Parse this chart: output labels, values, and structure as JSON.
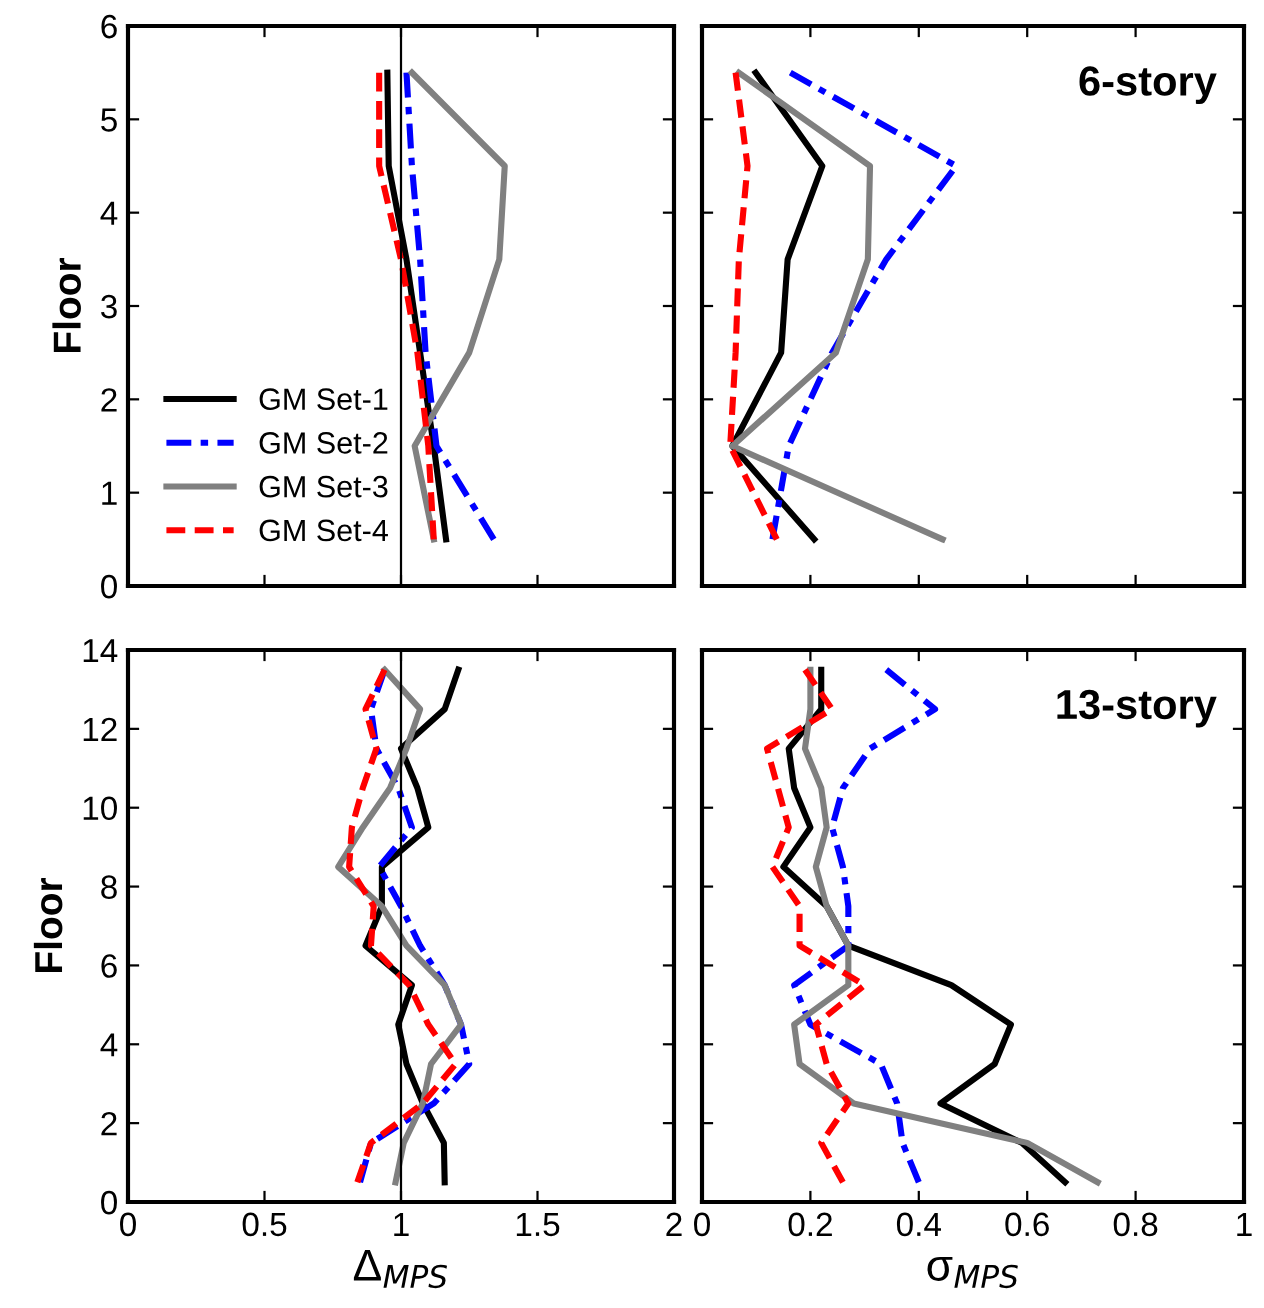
{
  "chart_data": [
    {
      "type": "line",
      "ylabel": "Floor",
      "xlim": [
        0,
        2
      ],
      "xticks": [
        0,
        0.5,
        1,
        1.5,
        2
      ],
      "ylim": [
        0,
        6
      ],
      "yticks": [
        0,
        1,
        2,
        3,
        4,
        5,
        6
      ],
      "tick_labels": "y",
      "legend": "bottom left",
      "ref_lines": [
        {
          "axis": "x",
          "value": 1,
          "color": "#000000"
        }
      ],
      "series": [
        {
          "name": "GM Set-1",
          "color": "#000000",
          "line_style": "solid",
          "x": [
            1.165,
            1.12,
            1.07,
            1.02,
            0.955,
            0.95
          ],
          "values": [
            0.5,
            1.5,
            2.5,
            3.5,
            4.5,
            5.5
          ]
        },
        {
          "name": "GM Set-2",
          "color": "#0000ff",
          "line_style": "dashdot",
          "x": [
            1.34,
            1.13,
            1.09,
            1.07,
            1.04,
            1.02
          ],
          "values": [
            0.5,
            1.5,
            2.5,
            3.5,
            4.5,
            5.5
          ]
        },
        {
          "name": "GM Set-3",
          "color": "#808080",
          "line_style": "solid",
          "x": [
            1.12,
            1.05,
            1.25,
            1.36,
            1.38,
            1.04
          ],
          "values": [
            0.5,
            1.5,
            2.5,
            3.5,
            4.5,
            5.5
          ]
        },
        {
          "name": "GM Set-4",
          "color": "#ff0000",
          "line_style": "dashed",
          "x": [
            1.12,
            1.1,
            1.06,
            1.0,
            0.92,
            0.92
          ],
          "values": [
            0.5,
            1.5,
            2.5,
            3.5,
            4.5,
            5.5
          ]
        }
      ]
    },
    {
      "type": "line",
      "xlim": [
        0,
        1
      ],
      "xticks": [
        0,
        0.2,
        0.4,
        0.6,
        0.8,
        1
      ],
      "ylim": [
        0,
        6
      ],
      "yticks": [
        0,
        1,
        2,
        3,
        4,
        5,
        6
      ],
      "tick_labels": false,
      "annotations": [
        "6-story"
      ],
      "series": [
        {
          "color": "#000000",
          "line_style": "solid",
          "x": [
            0.207,
            0.056,
            0.146,
            0.158,
            0.222,
            0.099
          ],
          "values": [
            0.5,
            1.5,
            2.5,
            3.5,
            4.5,
            5.5
          ]
        },
        {
          "color": "#0000ff",
          "line_style": "dashdot",
          "x": [
            0.13,
            0.16,
            0.24,
            0.34,
            0.469,
            0.163
          ],
          "values": [
            0.5,
            1.5,
            2.5,
            3.5,
            4.5,
            5.5
          ]
        },
        {
          "color": "#808080",
          "line_style": "solid",
          "x": [
            0.444,
            0.056,
            0.247,
            0.306,
            0.31,
            0.068
          ],
          "values": [
            0.5,
            1.5,
            2.5,
            3.5,
            4.5,
            5.5
          ]
        },
        {
          "color": "#ff0000",
          "line_style": "dashed",
          "x": [
            0.138,
            0.052,
            0.062,
            0.068,
            0.084,
            0.062
          ],
          "values": [
            0.5,
            1.5,
            2.5,
            3.5,
            4.5,
            5.5
          ]
        }
      ]
    },
    {
      "type": "line",
      "xlabel": "Δ$_{MPS}$",
      "ylabel": "Floor",
      "xlim": [
        0,
        2
      ],
      "xticks": [
        0,
        0.5,
        1,
        1.5,
        2
      ],
      "ylim": [
        0,
        14
      ],
      "yticks": [
        0,
        2,
        4,
        6,
        8,
        10,
        12,
        14
      ],
      "ref_lines": [
        {
          "axis": "x",
          "value": 1,
          "color": "#000000"
        }
      ],
      "series": [
        {
          "color": "#000000",
          "line_style": "solid",
          "x": [
            1.16,
            1.157,
            1.08,
            1.02,
            0.99,
            1.04,
            0.87,
            0.93,
            0.93,
            1.1,
            1.06,
            1.0,
            1.16,
            1.21
          ],
          "values": [
            0.5,
            1.5,
            2.5,
            3.5,
            4.5,
            5.5,
            6.5,
            7.5,
            8.5,
            9.5,
            10.5,
            11.5,
            12.5,
            13.5
          ]
        },
        {
          "color": "#0000ff",
          "line_style": "dashdot",
          "x": [
            0.85,
            0.89,
            1.12,
            1.25,
            1.22,
            1.16,
            1.07,
            1.0,
            0.92,
            1.04,
            0.99,
            0.91,
            0.89,
            0.94
          ],
          "values": [
            0.5,
            1.5,
            2.5,
            3.5,
            4.5,
            5.5,
            6.5,
            7.5,
            8.5,
            9.5,
            10.5,
            11.5,
            12.5,
            13.5
          ]
        },
        {
          "color": "#808080",
          "line_style": "solid",
          "x": [
            0.98,
            1.01,
            1.08,
            1.11,
            1.22,
            1.16,
            1.02,
            0.93,
            0.77,
            0.86,
            0.96,
            1.02,
            1.07,
            0.94
          ],
          "values": [
            0.5,
            1.5,
            2.5,
            3.5,
            4.5,
            5.5,
            6.5,
            7.5,
            8.5,
            9.5,
            10.5,
            11.5,
            12.5,
            13.5
          ]
        },
        {
          "color": "#ff0000",
          "line_style": "dashed",
          "x": [
            0.84,
            0.89,
            1.08,
            1.2,
            1.1,
            1.03,
            0.89,
            0.9,
            0.81,
            0.82,
            0.86,
            0.91,
            0.87,
            0.94
          ],
          "values": [
            0.5,
            1.5,
            2.5,
            3.5,
            4.5,
            5.5,
            6.5,
            7.5,
            8.5,
            9.5,
            10.5,
            11.5,
            12.5,
            13.5
          ]
        }
      ]
    },
    {
      "type": "line",
      "xlabel": "σ$_{MPS}$",
      "xlim": [
        0,
        1
      ],
      "xticks": [
        0,
        0.2,
        0.4,
        0.6,
        0.8,
        1
      ],
      "ylim": [
        0,
        14
      ],
      "yticks": [
        0,
        2,
        4,
        6,
        8,
        10,
        12,
        14
      ],
      "tick_labels": "x",
      "annotations": [
        "13-story"
      ],
      "series": [
        {
          "color": "#000000",
          "line_style": "solid",
          "x": [
            0.67,
            0.59,
            0.44,
            0.54,
            0.57,
            0.46,
            0.27,
            0.23,
            0.15,
            0.2,
            0.17,
            0.16,
            0.22,
            0.22
          ],
          "values": [
            0.5,
            1.5,
            2.5,
            3.5,
            4.5,
            5.5,
            6.5,
            7.5,
            8.5,
            9.5,
            10.5,
            11.5,
            12.5,
            13.5
          ]
        },
        {
          "color": "#0000ff",
          "line_style": "dashdot",
          "x": [
            0.4,
            0.37,
            0.36,
            0.33,
            0.2,
            0.17,
            0.27,
            0.27,
            0.26,
            0.24,
            0.26,
            0.31,
            0.43,
            0.34
          ],
          "values": [
            0.5,
            1.5,
            2.5,
            3.5,
            4.5,
            5.5,
            6.5,
            7.5,
            8.5,
            9.5,
            10.5,
            11.5,
            12.5,
            13.5
          ]
        },
        {
          "color": "#808080",
          "line_style": "solid",
          "x": [
            0.73,
            0.6,
            0.28,
            0.18,
            0.17,
            0.27,
            0.27,
            0.23,
            0.21,
            0.23,
            0.22,
            0.19,
            0.2,
            0.2
          ],
          "values": [
            0.5,
            1.5,
            2.5,
            3.5,
            4.5,
            5.5,
            6.5,
            7.5,
            8.5,
            9.5,
            10.5,
            11.5,
            12.5,
            13.5
          ]
        },
        {
          "color": "#ff0000",
          "line_style": "dashed",
          "x": [
            0.26,
            0.22,
            0.27,
            0.23,
            0.21,
            0.3,
            0.18,
            0.18,
            0.13,
            0.16,
            0.14,
            0.12,
            0.24,
            0.19
          ],
          "values": [
            0.5,
            1.5,
            2.5,
            3.5,
            4.5,
            5.5,
            6.5,
            7.5,
            8.5,
            9.5,
            10.5,
            11.5,
            12.5,
            13.5
          ]
        }
      ]
    }
  ]
}
